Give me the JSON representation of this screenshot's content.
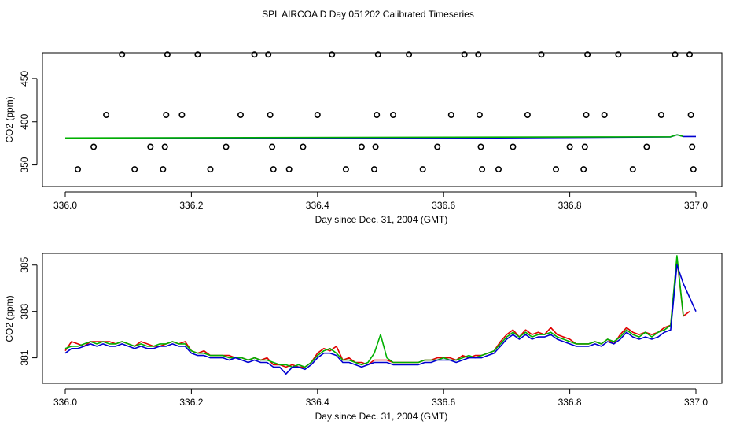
{
  "page_title": "SPL AIRCOA D  Day 051202  Calibrated Timeseries",
  "colors": {
    "series_red": "#e00000",
    "series_green": "#00b000",
    "series_blue": "#0000d0",
    "points": "#000000",
    "axes": "#000000"
  },
  "chart_data": [
    {
      "type": "scatter",
      "xlabel": "Day since Dec. 31, 2004 (GMT)",
      "ylabel": "CO2 (ppm)",
      "xlim": [
        336.0,
        337.0
      ],
      "ylim": [
        325,
        480
      ],
      "xticks": [
        "336.0",
        "336.2",
        "336.4",
        "336.6",
        "336.8",
        "337.0"
      ],
      "yticks": [
        "350",
        "400",
        "450"
      ],
      "calibration_points": [
        [
          336.02,
          345
        ],
        [
          336.045,
          371
        ],
        [
          336.065,
          408
        ],
        [
          336.09,
          478
        ],
        [
          336.11,
          345
        ],
        [
          336.135,
          371
        ],
        [
          336.155,
          345
        ],
        [
          336.158,
          371
        ],
        [
          336.16,
          408
        ],
        [
          336.162,
          478
        ],
        [
          336.185,
          408
        ],
        [
          336.21,
          478
        ],
        [
          336.23,
          345
        ],
        [
          336.255,
          371
        ],
        [
          336.278,
          408
        ],
        [
          336.3,
          478
        ],
        [
          336.322,
          478
        ],
        [
          336.325,
          408
        ],
        [
          336.328,
          371
        ],
        [
          336.33,
          345
        ],
        [
          336.355,
          345
        ],
        [
          336.377,
          371
        ],
        [
          336.4,
          408
        ],
        [
          336.423,
          478
        ],
        [
          336.445,
          345
        ],
        [
          336.47,
          371
        ],
        [
          336.49,
          345
        ],
        [
          336.492,
          371
        ],
        [
          336.494,
          408
        ],
        [
          336.496,
          478
        ],
        [
          336.52,
          408
        ],
        [
          336.545,
          478
        ],
        [
          336.567,
          345
        ],
        [
          336.59,
          371
        ],
        [
          336.612,
          408
        ],
        [
          336.633,
          478
        ],
        [
          336.655,
          478
        ],
        [
          336.657,
          408
        ],
        [
          336.659,
          371
        ],
        [
          336.661,
          345
        ],
        [
          336.687,
          345
        ],
        [
          336.71,
          371
        ],
        [
          336.733,
          408
        ],
        [
          336.755,
          478
        ],
        [
          336.778,
          345
        ],
        [
          336.8,
          371
        ],
        [
          336.822,
          345
        ],
        [
          336.824,
          371
        ],
        [
          336.826,
          408
        ],
        [
          336.828,
          478
        ],
        [
          336.855,
          408
        ],
        [
          336.877,
          478
        ],
        [
          336.9,
          345
        ],
        [
          336.922,
          371
        ],
        [
          336.945,
          408
        ],
        [
          336.967,
          478
        ],
        [
          336.99,
          478
        ],
        [
          336.992,
          408
        ],
        [
          336.994,
          371
        ],
        [
          336.996,
          345
        ]
      ],
      "series": [
        {
          "name": "blue-line",
          "color": "#0000d0",
          "x": [
            336.0,
            336.3,
            336.6,
            336.96,
            336.97,
            336.98,
            337.0
          ],
          "y": [
            381.2,
            381.0,
            381.0,
            382.5,
            385.0,
            383.0,
            383.0
          ]
        },
        {
          "name": "green-line",
          "color": "#00b000",
          "x": [
            336.0,
            336.96,
            336.97,
            336.98
          ],
          "y": [
            381.3,
            382.6,
            385.0,
            383.0
          ]
        }
      ]
    },
    {
      "type": "line",
      "xlabel": "Day since Dec. 31, 2004 (GMT)",
      "ylabel": "CO2 (ppm)",
      "xlim": [
        336.0,
        337.0
      ],
      "ylim": [
        379.9,
        385.5
      ],
      "xticks": [
        "336.0",
        "336.2",
        "336.4",
        "336.6",
        "336.8",
        "337.0"
      ],
      "yticks": [
        "381",
        "383",
        "385"
      ],
      "series": [
        {
          "name": "red",
          "color": "#e00000",
          "x": [
            336.0,
            336.01,
            336.02,
            336.03,
            336.04,
            336.05,
            336.06,
            336.07,
            336.08,
            336.09,
            336.1,
            336.11,
            336.12,
            336.13,
            336.14,
            336.15,
            336.16,
            336.17,
            336.18,
            336.19,
            336.2,
            336.21,
            336.22,
            336.23,
            336.24,
            336.25,
            336.26,
            336.27,
            336.28,
            336.29,
            336.3,
            336.31,
            336.32,
            336.33,
            336.34,
            336.35,
            336.36,
            336.37,
            336.38,
            336.39,
            336.4,
            336.41,
            336.42,
            336.43,
            336.44,
            336.45,
            336.46,
            336.47,
            336.48,
            336.49,
            336.5,
            336.51,
            336.52,
            336.53,
            336.54,
            336.55,
            336.56,
            336.57,
            336.58,
            336.59,
            336.6,
            336.61,
            336.62,
            336.63,
            336.64,
            336.65,
            336.66,
            336.67,
            336.68,
            336.69,
            336.7,
            336.71,
            336.72,
            336.73,
            336.74,
            336.75,
            336.76,
            336.77,
            336.78,
            336.79,
            336.8,
            336.81,
            336.82,
            336.83,
            336.84,
            336.85,
            336.86,
            336.87,
            336.88,
            336.89,
            336.9,
            336.91,
            336.92,
            336.93,
            336.94,
            336.95,
            336.96,
            336.97,
            336.98,
            336.99
          ],
          "y": [
            381.3,
            381.7,
            381.6,
            381.5,
            381.7,
            381.7,
            381.7,
            381.7,
            381.6,
            381.7,
            381.6,
            381.5,
            381.7,
            381.6,
            381.5,
            381.5,
            381.6,
            381.7,
            381.6,
            381.7,
            381.3,
            381.2,
            381.3,
            381.1,
            381.1,
            381.1,
            381.1,
            381.0,
            381.0,
            380.9,
            381.0,
            380.9,
            381.0,
            380.7,
            380.7,
            380.6,
            380.7,
            380.6,
            380.6,
            380.8,
            381.2,
            381.4,
            381.3,
            381.5,
            380.9,
            381.0,
            380.8,
            380.8,
            380.7,
            380.9,
            380.9,
            380.9,
            380.8,
            380.8,
            380.8,
            380.8,
            380.8,
            380.9,
            380.9,
            381.0,
            381.0,
            381.0,
            380.9,
            381.1,
            381.0,
            381.1,
            381.1,
            381.2,
            381.3,
            381.7,
            382.0,
            382.2,
            381.9,
            382.2,
            382.0,
            382.1,
            382.0,
            382.3,
            382.0,
            381.9,
            381.8,
            381.6,
            381.6,
            381.6,
            381.7,
            381.6,
            381.8,
            381.6,
            382.0,
            382.3,
            382.1,
            382.0,
            382.1,
            382.0,
            382.1,
            382.3,
            382.4,
            385.3,
            382.8,
            383.0
          ]
        },
        {
          "name": "green",
          "color": "#00b000",
          "x": [
            336.0,
            336.01,
            336.02,
            336.03,
            336.04,
            336.05,
            336.06,
            336.07,
            336.08,
            336.09,
            336.1,
            336.11,
            336.12,
            336.13,
            336.14,
            336.15,
            336.16,
            336.17,
            336.18,
            336.19,
            336.2,
            336.21,
            336.22,
            336.23,
            336.24,
            336.25,
            336.26,
            336.27,
            336.28,
            336.29,
            336.3,
            336.31,
            336.32,
            336.33,
            336.34,
            336.35,
            336.36,
            336.37,
            336.38,
            336.39,
            336.4,
            336.41,
            336.42,
            336.43,
            336.44,
            336.45,
            336.46,
            336.47,
            336.48,
            336.49,
            336.5,
            336.51,
            336.52,
            336.53,
            336.54,
            336.55,
            336.56,
            336.57,
            336.58,
            336.59,
            336.6,
            336.61,
            336.62,
            336.63,
            336.64,
            336.65,
            336.66,
            336.67,
            336.68,
            336.69,
            336.7,
            336.71,
            336.72,
            336.73,
            336.74,
            336.75,
            336.76,
            336.77,
            336.78,
            336.79,
            336.8,
            336.81,
            336.82,
            336.83,
            336.84,
            336.85,
            336.86,
            336.87,
            336.88,
            336.89,
            336.9,
            336.91,
            336.92,
            336.93,
            336.94,
            336.95,
            336.96,
            336.97,
            336.98
          ],
          "y": [
            381.4,
            381.5,
            381.5,
            381.6,
            381.7,
            381.6,
            381.7,
            381.6,
            381.6,
            381.7,
            381.6,
            381.5,
            381.6,
            381.5,
            381.5,
            381.6,
            381.6,
            381.7,
            381.6,
            381.6,
            381.3,
            381.2,
            381.2,
            381.1,
            381.1,
            381.1,
            381.0,
            381.0,
            381.0,
            380.9,
            381.0,
            380.9,
            380.9,
            380.8,
            380.7,
            380.7,
            380.6,
            380.7,
            380.6,
            380.8,
            381.1,
            381.3,
            381.4,
            381.2,
            380.9,
            380.9,
            380.8,
            380.7,
            380.8,
            381.2,
            382.0,
            381.0,
            380.8,
            380.8,
            380.8,
            380.8,
            380.8,
            380.9,
            380.9,
            380.9,
            381.0,
            380.9,
            380.9,
            381.0,
            381.1,
            381.0,
            381.1,
            381.2,
            381.3,
            381.6,
            381.9,
            382.1,
            381.9,
            382.1,
            381.9,
            382.0,
            382.0,
            382.1,
            381.9,
            381.8,
            381.7,
            381.6,
            381.6,
            381.6,
            381.7,
            381.6,
            381.8,
            381.7,
            381.9,
            382.2,
            382.0,
            381.9,
            382.1,
            381.9,
            382.1,
            382.2,
            382.4,
            385.4,
            382.8
          ]
        },
        {
          "name": "blue",
          "color": "#0000d0",
          "x": [
            336.0,
            336.01,
            336.02,
            336.03,
            336.04,
            336.05,
            336.06,
            336.07,
            336.08,
            336.09,
            336.1,
            336.11,
            336.12,
            336.13,
            336.14,
            336.15,
            336.16,
            336.17,
            336.18,
            336.19,
            336.2,
            336.21,
            336.22,
            336.23,
            336.24,
            336.25,
            336.26,
            336.27,
            336.28,
            336.29,
            336.3,
            336.31,
            336.32,
            336.33,
            336.34,
            336.35,
            336.36,
            336.37,
            336.38,
            336.39,
            336.4,
            336.41,
            336.42,
            336.43,
            336.44,
            336.45,
            336.46,
            336.47,
            336.48,
            336.49,
            336.5,
            336.51,
            336.52,
            336.53,
            336.54,
            336.55,
            336.56,
            336.57,
            336.58,
            336.59,
            336.6,
            336.61,
            336.62,
            336.63,
            336.64,
            336.65,
            336.66,
            336.67,
            336.68,
            336.69,
            336.7,
            336.71,
            336.72,
            336.73,
            336.74,
            336.75,
            336.76,
            336.77,
            336.78,
            336.79,
            336.8,
            336.81,
            336.82,
            336.83,
            336.84,
            336.85,
            336.86,
            336.87,
            336.88,
            336.89,
            336.9,
            336.91,
            336.92,
            336.93,
            336.94,
            336.95,
            336.96,
            336.97,
            336.98,
            336.99,
            337.0
          ],
          "y": [
            381.2,
            381.4,
            381.4,
            381.5,
            381.6,
            381.5,
            381.6,
            381.5,
            381.5,
            381.6,
            381.5,
            381.4,
            381.5,
            381.4,
            381.4,
            381.5,
            381.5,
            381.6,
            381.5,
            381.5,
            381.2,
            381.1,
            381.1,
            381.0,
            381.0,
            381.0,
            380.9,
            381.0,
            380.9,
            380.8,
            380.9,
            380.8,
            380.8,
            380.6,
            380.6,
            380.3,
            380.6,
            380.6,
            380.5,
            380.7,
            381.0,
            381.2,
            381.2,
            381.1,
            380.8,
            380.8,
            380.7,
            380.6,
            380.7,
            380.8,
            380.8,
            380.8,
            380.7,
            380.7,
            380.7,
            380.7,
            380.7,
            380.8,
            380.8,
            380.9,
            380.9,
            380.9,
            380.8,
            380.9,
            381.0,
            381.0,
            381.0,
            381.1,
            381.2,
            381.5,
            381.8,
            382.0,
            381.8,
            382.0,
            381.8,
            381.9,
            381.9,
            382.0,
            381.8,
            381.7,
            381.6,
            381.5,
            381.5,
            381.5,
            381.6,
            381.5,
            381.7,
            381.6,
            381.8,
            382.1,
            381.9,
            381.8,
            381.9,
            381.8,
            381.9,
            382.1,
            382.2,
            385.0,
            384.2,
            383.6,
            383.0
          ]
        }
      ]
    }
  ]
}
